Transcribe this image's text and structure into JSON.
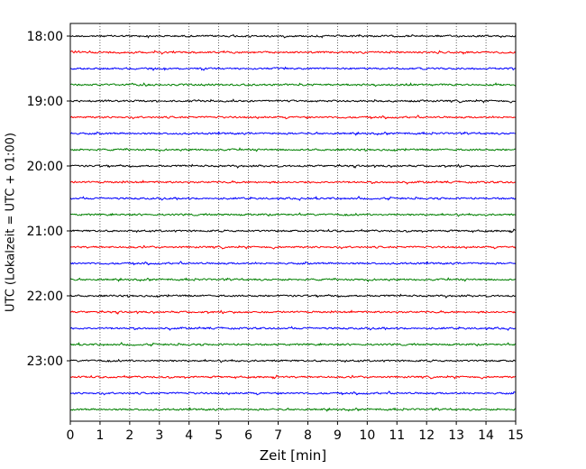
{
  "chart_data": {
    "type": "line",
    "subtype": "helicorder-seismogram",
    "xlabel": "Zeit  [min]",
    "ylabel": "UTC (Lokalzeit = UTC + 01:00)",
    "xlim": [
      0,
      15
    ],
    "x_ticks": [
      "0",
      "1",
      "2",
      "3",
      "4",
      "5",
      "6",
      "7",
      "8",
      "9",
      "10",
      "11",
      "12",
      "13",
      "14",
      "15"
    ],
    "y_tick_labels": [
      "18:00",
      "19:00",
      "20:00",
      "21:00",
      "22:00",
      "23:00"
    ],
    "y_tick_rows": [
      0,
      4,
      8,
      12,
      16,
      20
    ],
    "rows": 24,
    "row_minutes": 15,
    "start_time": "18:00",
    "grid": "vertical-dotted",
    "legend": "none",
    "trace_colors": [
      "#000000",
      "#ff0000",
      "#0000ff",
      "#008000"
    ]
  }
}
